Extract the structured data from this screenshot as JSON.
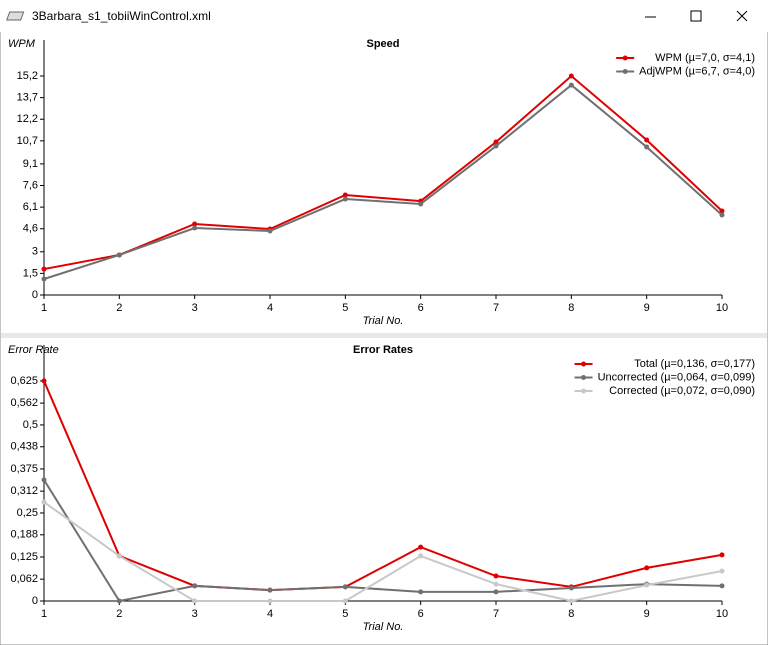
{
  "window": {
    "title": "3Barbara_s1_tobiiWinControl.xml"
  },
  "chart_data": [
    {
      "type": "line",
      "title": "Speed",
      "y_label": "WPM",
      "x_label": "Trial No.",
      "x": [
        1,
        2,
        3,
        4,
        5,
        6,
        7,
        8,
        9,
        10
      ],
      "xlim": [
        1,
        10
      ],
      "xticks": [
        1,
        2,
        3,
        4,
        5,
        6,
        7,
        8,
        9,
        10
      ],
      "ylim": [
        0,
        17.7
      ],
      "yticks": [
        0,
        {
          "value": 1.5,
          "label": "1,5"
        },
        3,
        {
          "value": 4.6,
          "label": "4,6"
        },
        {
          "value": 6.1,
          "label": "6,1"
        },
        {
          "value": 7.6,
          "label": "7,6"
        },
        {
          "value": 9.1,
          "label": "9,1"
        },
        {
          "value": 10.7,
          "label": "10,7"
        },
        {
          "value": 12.2,
          "label": "12,2"
        },
        {
          "value": 13.7,
          "label": "13,7"
        },
        {
          "value": 15.2,
          "label": "15,2"
        }
      ],
      "legend": "top-right",
      "series": [
        {
          "name": "WPM (µ=7,0, σ=4,1)",
          "color": "#e00000",
          "values": [
            1.8,
            2.78,
            4.93,
            4.58,
            6.94,
            6.52,
            10.62,
            15.2,
            10.76,
            5.83
          ]
        },
        {
          "name": "AdjWPM (µ=6,7, σ=4,0)",
          "color": "#707070",
          "values": [
            1.11,
            2.78,
            4.65,
            4.44,
            6.66,
            6.32,
            10.34,
            14.57,
            10.27,
            5.55
          ]
        }
      ]
    },
    {
      "type": "line",
      "title": "Error Rates",
      "y_label": "Error Rate",
      "x_label": "Trial No.",
      "x": [
        1,
        2,
        3,
        4,
        5,
        6,
        7,
        8,
        9,
        10
      ],
      "xlim": [
        1,
        10
      ],
      "xticks": [
        1,
        2,
        3,
        4,
        5,
        6,
        7,
        8,
        9,
        10
      ],
      "ylim": [
        0,
        0.727
      ],
      "yticks": [
        0,
        {
          "value": 0.062,
          "label": "0,062"
        },
        {
          "value": 0.125,
          "label": "0,125"
        },
        {
          "value": 0.188,
          "label": "0,188"
        },
        {
          "value": 0.25,
          "label": "0,25"
        },
        {
          "value": 0.312,
          "label": "0,312"
        },
        {
          "value": 0.375,
          "label": "0,375"
        },
        {
          "value": 0.438,
          "label": "0,438"
        },
        {
          "value": 0.5,
          "label": "0,5"
        },
        {
          "value": 0.562,
          "label": "0,562"
        },
        {
          "value": 0.625,
          "label": "0,625"
        }
      ],
      "legend": "top-right",
      "series": [
        {
          "name": "Total (µ=0,136, σ=0,177)",
          "color": "#e00000",
          "values": [
            0.625,
            0.128,
            0.043,
            0.031,
            0.04,
            0.153,
            0.071,
            0.04,
            0.094,
            0.131
          ]
        },
        {
          "name": "Uncorrected (µ=0,064, σ=0,099)",
          "color": "#707070",
          "values": [
            0.344,
            0,
            0.043,
            0.031,
            0.04,
            0.026,
            0.026,
            0.037,
            0.048,
            0.043
          ]
        },
        {
          "name": "Corrected (µ=0,072, σ=0,090)",
          "color": "#c8c8c8",
          "values": [
            0.281,
            0.128,
            0,
            0,
            0,
            0.128,
            0.048,
            0,
            0.045,
            0.085
          ]
        }
      ]
    }
  ]
}
